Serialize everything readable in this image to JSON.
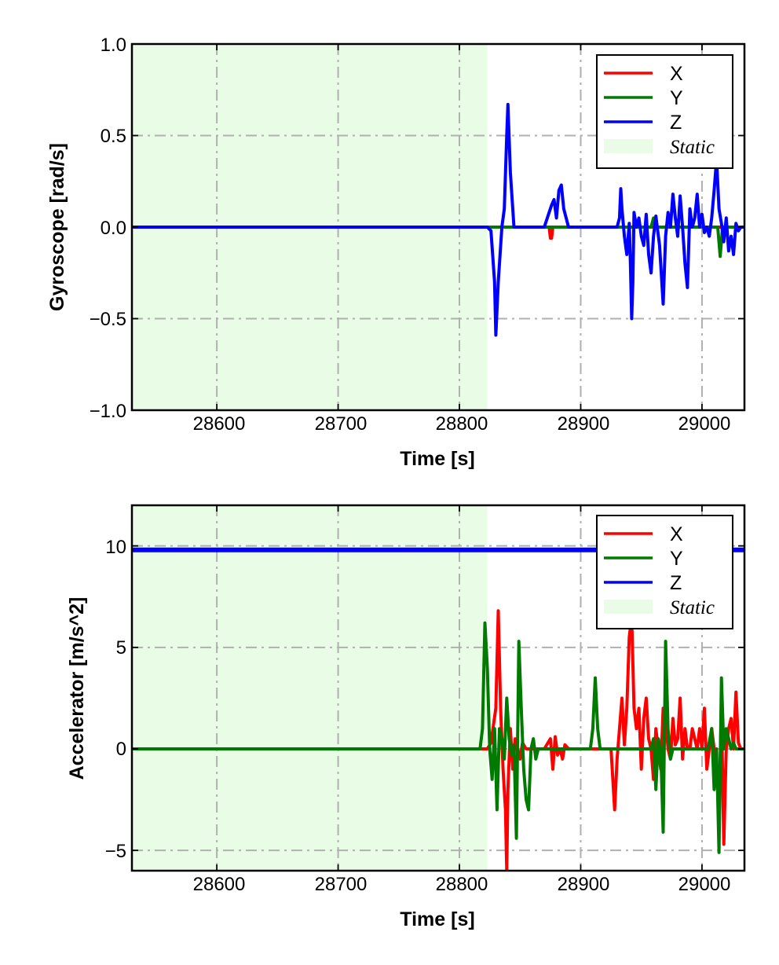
{
  "colors": {
    "x": "#ff0000",
    "y": "#007a00",
    "z": "#0000ff",
    "static": "#e9fde6",
    "grid": "#b0b0b0"
  },
  "chart_data": [
    {
      "type": "line",
      "xlabel": "Time [s]",
      "ylabel": "Gyroscope [rad/s]",
      "xlim": [
        28530,
        29035
      ],
      "ylim": [
        -1.0,
        1.0
      ],
      "xticks": [
        28600,
        28700,
        28800,
        28900,
        29000
      ],
      "xtick_labels": [
        "28600",
        "28700",
        "28800",
        "28900",
        "29000"
      ],
      "yticks": [
        1.0,
        0.5,
        0.0,
        -0.5,
        -1.0
      ],
      "ytick_labels": [
        "1.0",
        "0.5",
        "0.0",
        "−0.5",
        "−1.0"
      ],
      "grid": true,
      "legend_position": "top-right",
      "static_span": [
        28530,
        28823
      ],
      "legend": {
        "x": "X",
        "y": "Y",
        "z": "Z",
        "static": "Static"
      },
      "series": [
        {
          "name": "X",
          "color": "#ff0000",
          "x": [
            28530,
            28874,
            28875,
            28876,
            28877,
            29035
          ],
          "y": [
            0,
            0,
            -0.06,
            -0.06,
            0,
            0
          ]
        },
        {
          "name": "Y",
          "color": "#007a00",
          "x": [
            28530,
            28958,
            28960,
            28962,
            29013,
            29015,
            29017,
            29035
          ],
          "y": [
            0,
            0,
            0.05,
            0,
            0,
            -0.16,
            0,
            0
          ]
        },
        {
          "name": "Z",
          "color": "#0000ff",
          "x": [
            28530,
            28823,
            28826,
            28829,
            28830,
            28832,
            28835,
            28837,
            28839,
            28840,
            28842,
            28845,
            28870,
            28876,
            28878,
            28880,
            28882,
            28884,
            28886,
            28890,
            28900,
            28930,
            28932,
            28933,
            28934,
            28936,
            28938,
            28940,
            28941,
            28942,
            28943,
            28944,
            28946,
            28948,
            28950,
            28952,
            28954,
            28956,
            28958,
            28960,
            28962,
            28965,
            28968,
            28970,
            28972,
            28974,
            28976,
            28978,
            28980,
            28982,
            28984,
            28986,
            28988,
            28990,
            28992,
            28994,
            28996,
            28998,
            29000,
            29002,
            29004,
            29006,
            29008,
            29010,
            29012,
            29014,
            29016,
            29018,
            29020,
            29022,
            29024,
            29026,
            29028,
            29030,
            29032,
            29035
          ],
          "y": [
            0,
            0,
            -0.02,
            -0.3,
            -0.59,
            -0.3,
            0.0,
            0.1,
            0.5,
            0.67,
            0.3,
            0.0,
            0.0,
            0.12,
            0.15,
            0.05,
            0.2,
            0.23,
            0.1,
            0.0,
            0.0,
            0.0,
            0.05,
            0.21,
            0.1,
            -0.05,
            -0.15,
            0.02,
            -0.2,
            -0.5,
            -0.3,
            0.08,
            0.0,
            0.05,
            -0.05,
            -0.1,
            0.07,
            -0.15,
            -0.25,
            -0.05,
            0.06,
            -0.1,
            -0.42,
            -0.05,
            0.08,
            0.0,
            0.18,
            0.05,
            -0.05,
            0.17,
            0.0,
            -0.2,
            -0.33,
            0.1,
            0.0,
            0.05,
            0.18,
            0.0,
            0.07,
            -0.03,
            0.0,
            -0.05,
            0.05,
            0.2,
            0.37,
            0.1,
            0.02,
            -0.08,
            0.05,
            -0.13,
            -0.05,
            -0.15,
            0.02,
            -0.02,
            0.0,
            0.0
          ]
        }
      ]
    },
    {
      "type": "line",
      "xlabel": "Time [s]",
      "ylabel": "Accelerator [m/s^2]",
      "xlim": [
        28530,
        29035
      ],
      "ylim": [
        -6,
        12
      ],
      "xticks": [
        28600,
        28700,
        28800,
        28900,
        29000
      ],
      "xtick_labels": [
        "28600",
        "28700",
        "28800",
        "28900",
        "29000"
      ],
      "yticks": [
        10,
        5,
        0,
        -5
      ],
      "ytick_labels": [
        "10",
        "5",
        "0",
        "−5"
      ],
      "grid": true,
      "legend_position": "top-right",
      "static_span": [
        28530,
        28823
      ],
      "legend": {
        "x": "X",
        "y": "Y",
        "z": "Z",
        "static": "Static"
      },
      "series": [
        {
          "name": "X",
          "color": "#ff0000",
          "x": [
            28530,
            28823,
            28826,
            28830,
            28832,
            28834,
            28836,
            28838,
            28839,
            28840,
            28842,
            28844,
            28846,
            28848,
            28850,
            28852,
            28855,
            28860,
            28865,
            28870,
            28875,
            28877,
            28879,
            28881,
            28883,
            28885,
            28887,
            28890,
            28895,
            28900,
            28905,
            28910,
            28915,
            28920,
            28925,
            28928,
            28930,
            28932,
            28934,
            28936,
            28938,
            28940,
            28942,
            28944,
            28946,
            28948,
            28950,
            28952,
            28954,
            28956,
            28958,
            28960,
            28962,
            28964,
            28966,
            28968,
            28970,
            28972,
            28974,
            28976,
            28978,
            28980,
            28982,
            28984,
            28986,
            28988,
            28990,
            28992,
            28994,
            28996,
            28998,
            29000,
            29002,
            29004,
            29006,
            29008,
            29010,
            29012,
            29014,
            29016,
            29018,
            29020,
            29022,
            29024,
            29026,
            29028,
            29030,
            29032,
            29035
          ],
          "y": [
            0,
            0,
            0.3,
            2.0,
            6.8,
            2.0,
            -1.0,
            -3.0,
            -6.0,
            -2.0,
            1.0,
            -1.0,
            0.5,
            0.0,
            -0.5,
            0.3,
            0.0,
            0.0,
            0.0,
            0.0,
            0.5,
            -1.0,
            0.6,
            -0.3,
            0.0,
            -0.5,
            0.2,
            0.0,
            0.0,
            0.0,
            0.0,
            0.0,
            0.0,
            0.0,
            0.0,
            -3.0,
            -0.5,
            1.0,
            2.5,
            0.2,
            2.0,
            5.5,
            6.5,
            2.0,
            1.0,
            2.0,
            -1.0,
            1.5,
            2.5,
            0.5,
            0.0,
            -1.5,
            1.0,
            0.0,
            -1.0,
            2.0,
            1.5,
            0.0,
            -0.5,
            1.5,
            0.2,
            0.5,
            2.5,
            -0.5,
            1.0,
            0.0,
            0.0,
            1.0,
            0.5,
            0.0,
            1.0,
            0.0,
            2.0,
            -1.0,
            0.0,
            1.0,
            0.0,
            -1.0,
            -3.0,
            2.0,
            -4.7,
            0.0,
            1.0,
            1.5,
            0.0,
            2.8,
            0.3,
            0.0,
            0.0
          ]
        },
        {
          "name": "Y",
          "color": "#007a00",
          "x": [
            28530,
            28817,
            28819,
            28821,
            28823,
            28825,
            28827,
            28829,
            28831,
            28833,
            28835,
            28837,
            28839,
            28841,
            28843,
            28845,
            28847,
            28849,
            28851,
            28853,
            28855,
            28857,
            28859,
            28861,
            28863,
            28865,
            28870,
            28875,
            28880,
            28885,
            28890,
            28900,
            28905,
            28908,
            28910,
            28912,
            28914,
            28916,
            28918,
            28920,
            28925,
            28930,
            28935,
            28940,
            28945,
            28950,
            28955,
            28958,
            28960,
            28962,
            28964,
            28966,
            28968,
            28970,
            28972,
            28974,
            28976,
            28978,
            28980,
            28985,
            28990,
            28995,
            29000,
            29005,
            29008,
            29010,
            29012,
            29014,
            29016,
            29018,
            29020,
            29022,
            29024,
            29026,
            29028,
            29030,
            29035
          ],
          "y": [
            0,
            0,
            1.0,
            6.2,
            4.0,
            0.0,
            -1.5,
            1.0,
            -3.0,
            1.0,
            0.5,
            -0.5,
            2.5,
            0.5,
            -0.3,
            0.2,
            -4.4,
            5.3,
            2.0,
            -1.0,
            -2.5,
            -3.0,
            0.0,
            0.5,
            -0.5,
            0.0,
            0.0,
            0.0,
            0.0,
            0.0,
            0.0,
            0.0,
            0.0,
            0.0,
            1.0,
            3.5,
            1.0,
            0.0,
            0.0,
            0.0,
            0.0,
            0.0,
            0.0,
            0.0,
            0.0,
            0.0,
            0.0,
            0.0,
            0.5,
            -2.0,
            0.5,
            0.0,
            -4.1,
            5.3,
            1.0,
            -0.5,
            0.0,
            0.0,
            0.0,
            0.0,
            0.0,
            0.0,
            0.0,
            0.0,
            1.0,
            -2.0,
            0.0,
            -5.1,
            3.5,
            0.0,
            1.0,
            0.5,
            0.0,
            0.3,
            0.0,
            0.0,
            0.0
          ]
        },
        {
          "name": "Z",
          "color": "#0000ff",
          "x": [
            28530,
            29035
          ],
          "y": [
            9.8,
            9.8
          ]
        }
      ]
    }
  ]
}
